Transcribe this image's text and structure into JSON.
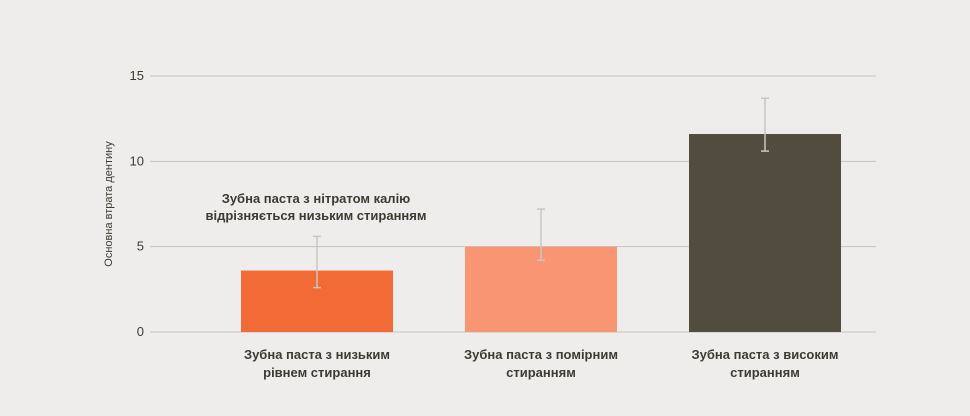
{
  "chart_data": {
    "type": "bar",
    "title": "",
    "xlabel": "",
    "ylabel": "Основна втрата дентину",
    "ylim": [
      0,
      15
    ],
    "yticks": [
      0,
      5,
      10,
      15
    ],
    "grid": true,
    "categories": [
      [
        "Зубна паста з низьким",
        "рівнем стирання"
      ],
      [
        "Зубна паста з помірним",
        "стиранням"
      ],
      [
        "Зубна паста з високим",
        "стиранням"
      ]
    ],
    "values": [
      3.6,
      5.0,
      11.6
    ],
    "error": [
      [
        2.6,
        5.6
      ],
      [
        4.2,
        7.2
      ],
      [
        10.6,
        13.7
      ]
    ],
    "colors": [
      "#f26a35",
      "#f89673",
      "#524c3e"
    ],
    "annotation": [
      "Зубна паста з нітратом калію",
      "відрізняється низьким стиранням"
    ]
  }
}
